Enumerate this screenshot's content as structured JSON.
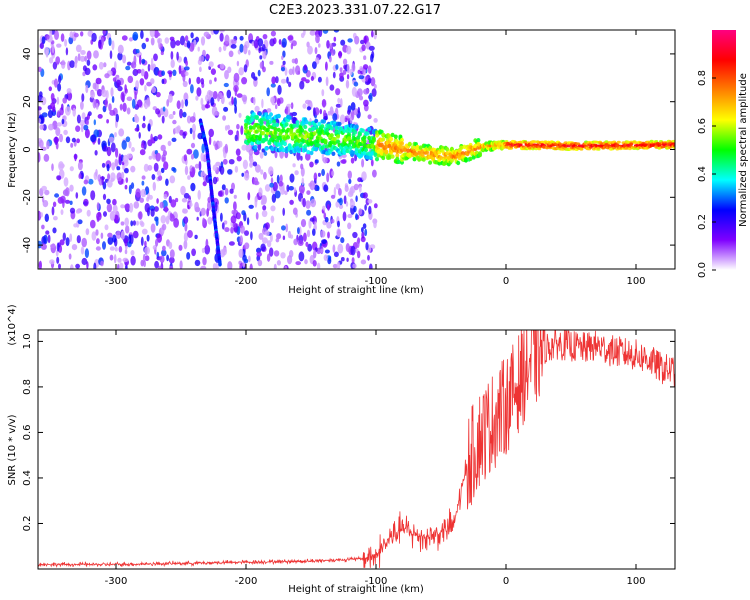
{
  "title": "C2E3.2023.331.07.22.G17",
  "chart_data": [
    {
      "type": "heatmap",
      "xlabel": "Height of straight line (km)",
      "ylabel": "Frequency (Hz)",
      "xlim": [
        -360,
        130
      ],
      "ylim": [
        -50,
        50
      ],
      "xticks": [
        -300,
        -200,
        -100,
        0,
        100
      ],
      "yticks": [
        -40,
        -20,
        0,
        20,
        40
      ],
      "colorbar": {
        "label": "Normalized spectral amplitude",
        "range": [
          0,
          1
        ],
        "ticks": [
          "0.0",
          "0.2",
          "0.4",
          "0.6",
          "0.8"
        ],
        "colors": [
          "#ffffff",
          "#7f00ff",
          "#0000ff",
          "#00ffff",
          "#00ff00",
          "#ffff00",
          "#ff7f00",
          "#ff0000",
          "#ff0080"
        ]
      },
      "features": [
        {
          "name": "noise_region",
          "x_range": [
            -360,
            -100
          ],
          "freq_range": [
            -50,
            50
          ]
        },
        {
          "name": "dispersive_streak",
          "points": [
            [
              -235,
              12
            ],
            [
              -230,
              0
            ],
            [
              -225,
              -25
            ],
            [
              -220,
              -48
            ]
          ]
        },
        {
          "name": "signal_band",
          "points": [
            [
              -200,
              8
            ],
            [
              -160,
              6
            ],
            [
              -120,
              4
            ],
            [
              -80,
              0
            ],
            [
              -60,
              -2
            ],
            [
              -40,
              -3
            ],
            [
              -20,
              1
            ],
            [
              0,
              2
            ],
            [
              50,
              1.5
            ],
            [
              130,
              2
            ]
          ]
        }
      ]
    },
    {
      "type": "line",
      "xlabel": "Height of straight line (km)",
      "ylabel": "SNR (10 * v/v)",
      "y_multiplier": "(x10^4)",
      "xlim": [
        -360,
        130
      ],
      "ylim": [
        0,
        1.05
      ],
      "xticks": [
        -300,
        -200,
        -100,
        0,
        100
      ],
      "yticks": [
        "0.2",
        "0.4",
        "0.6",
        "0.8",
        "1.0"
      ],
      "series": [
        {
          "color": "#ee3333",
          "x": [
            -360,
            -300,
            -250,
            -200,
            -150,
            -110,
            -100,
            -90,
            -80,
            -70,
            -60,
            -50,
            -40,
            -30,
            -20,
            -10,
            0,
            10,
            20,
            30,
            40,
            50,
            60,
            70,
            80,
            90,
            100,
            110,
            120,
            130
          ],
          "y": [
            0.02,
            0.02,
            0.025,
            0.03,
            0.035,
            0.045,
            0.06,
            0.13,
            0.18,
            0.15,
            0.14,
            0.16,
            0.2,
            0.45,
            0.58,
            0.65,
            0.72,
            0.82,
            0.92,
            0.97,
            0.99,
            0.98,
            0.97,
            0.98,
            0.96,
            0.95,
            0.94,
            0.92,
            0.88,
            0.87
          ]
        }
      ]
    }
  ]
}
